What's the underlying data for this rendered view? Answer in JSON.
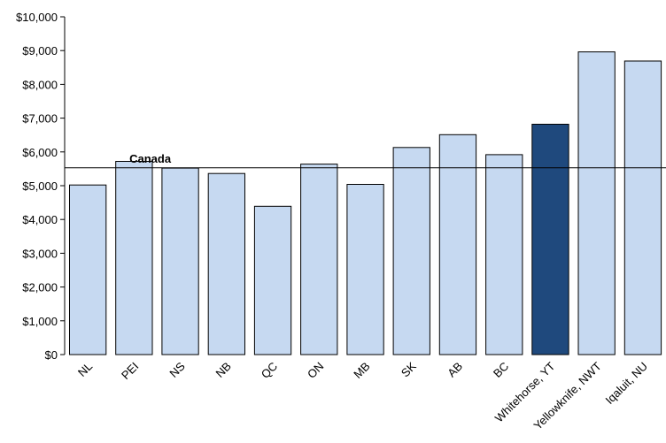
{
  "chart_data": {
    "type": "bar",
    "categories": [
      "NL",
      "PEI",
      "NS",
      "NB",
      "QC",
      "ON",
      "MB",
      "SK",
      "AB",
      "BC",
      "Whitehorse, YT",
      "Yellowknife, NWT",
      "Iqaluit, NU"
    ],
    "values": [
      5020,
      5720,
      5520,
      5360,
      4390,
      5640,
      5040,
      6130,
      6510,
      5920,
      6820,
      8960,
      8690
    ],
    "highlight_index": 10,
    "ylim": [
      0,
      10000
    ],
    "y_ticks": [
      "$0",
      "$1,000",
      "$2,000",
      "$3,000",
      "$4,000",
      "$5,000",
      "$6,000",
      "$7,000",
      "$8,000",
      "$9,000",
      "$10,000"
    ],
    "reference_line": {
      "label": "Canada",
      "value": 5530
    },
    "colors": {
      "bar": "#c6d9f1",
      "highlight": "#1f497d",
      "outline": "#000000"
    },
    "grid": false,
    "legend": "none"
  }
}
